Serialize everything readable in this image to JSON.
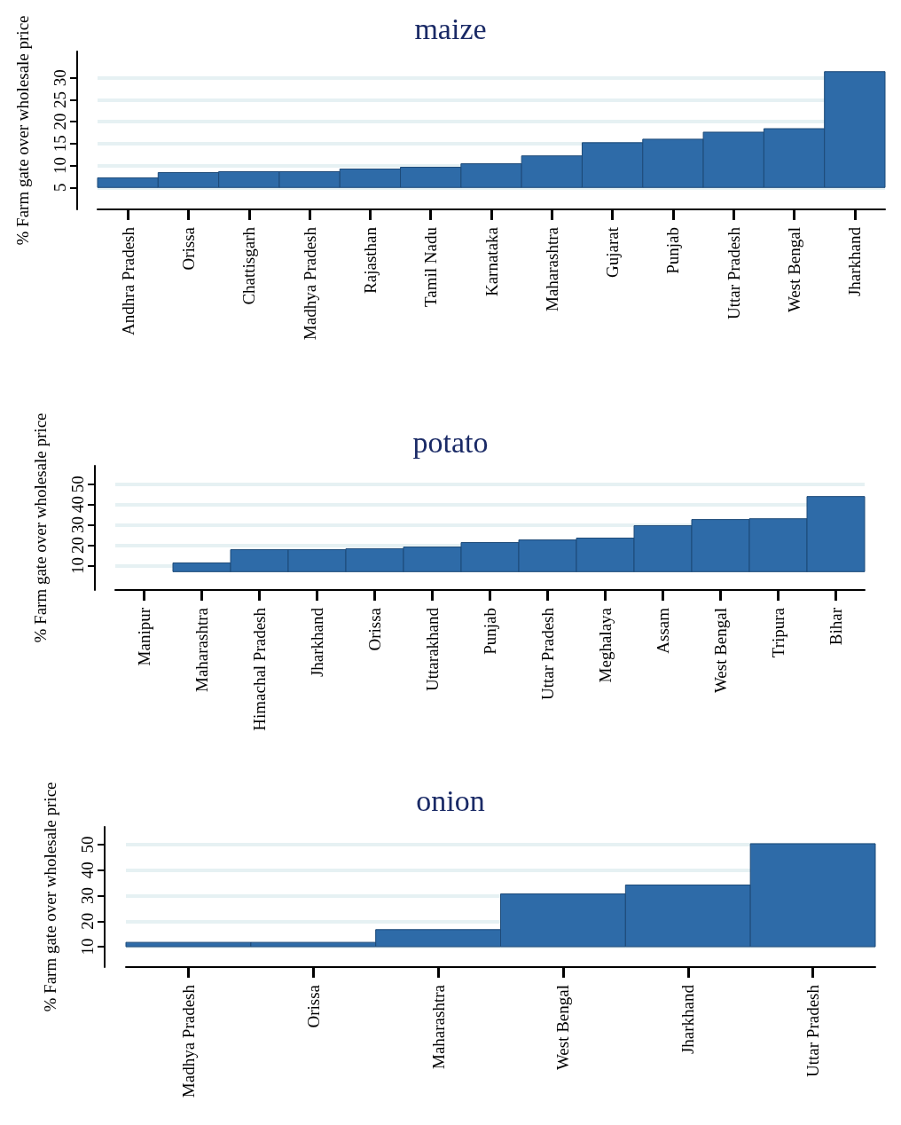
{
  "chart_data": [
    {
      "type": "bar",
      "title": "maize",
      "ylabel": "% Farm gate over wholesale price",
      "color": "#2e6ba8",
      "grid": "y",
      "categories": [
        "Andhra Pradesh",
        "Orissa",
        "Chattisgarh",
        "Madhya Pradesh",
        "Rajasthan",
        "Tamil Nadu",
        "Karnataka",
        "Maharashtra",
        "Gujarat",
        "Punjab",
        "Uttar Pradesh",
        "West Bengal",
        "Jharkhand"
      ],
      "base": [
        5,
        5,
        5,
        5,
        5,
        5,
        5,
        5,
        5,
        5,
        5,
        5,
        5
      ],
      "values": [
        2.2,
        3.4,
        3.6,
        3.6,
        4.2,
        4.6,
        5.4,
        7.2,
        10.2,
        11,
        12.6,
        13.4,
        26.4
      ],
      "ylim": [
        0,
        36
      ],
      "yticks": [
        5,
        10,
        15,
        20,
        25,
        30
      ]
    },
    {
      "type": "bar",
      "title": "potato",
      "ylabel": "% Farm gate over wholesale price",
      "color": "#2e6ba8",
      "grid": "y",
      "categories": [
        "Manipur",
        "Maharashtra",
        "Himachal Pradesh",
        "Jharkhand",
        "Orissa",
        "Uttarakhand",
        "Punjab",
        "Uttar Pradesh",
        "Meghalaya",
        "Assam",
        "West Bengal",
        "Tripura",
        "Bihar"
      ],
      "base": [
        null,
        7,
        7,
        7,
        7,
        7,
        7,
        7,
        7,
        7,
        7,
        7,
        7
      ],
      "values": [
        null,
        4.3,
        10.8,
        10.8,
        11.3,
        12.1,
        14.3,
        15.6,
        16.5,
        22.6,
        25.6,
        26,
        36.9
      ],
      "ylim": [
        -2,
        59
      ],
      "yticks": [
        10,
        20,
        30,
        40,
        50
      ]
    },
    {
      "type": "bar",
      "title": "onion",
      "ylabel": "% Farm gate over wholesale price",
      "color": "#2e6ba8",
      "grid": "y",
      "categories": [
        "Madhya Pradesh",
        "Orissa",
        "Maharashtra",
        "West Bengal",
        "Jharkhand",
        "Uttar Pradesh"
      ],
      "base": [
        10,
        10,
        10,
        10,
        10,
        10
      ],
      "values": [
        1.7,
        1.7,
        6.7,
        20.7,
        24.2,
        40.4
      ],
      "ylim": [
        2,
        57
      ],
      "yticks": [
        10,
        20,
        30,
        40,
        50
      ]
    }
  ]
}
